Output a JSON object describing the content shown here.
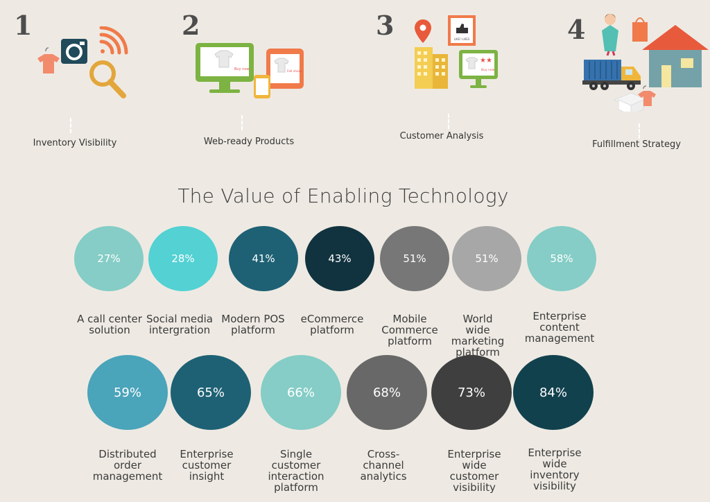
{
  "steps": [
    {
      "number": "1",
      "label": "Inventory Visibility"
    },
    {
      "number": "2",
      "label": "Web-ready Products"
    },
    {
      "number": "3",
      "label": "Customer Analysis"
    },
    {
      "number": "4",
      "label": "Fulfillment Strategy"
    }
  ],
  "title": "The Value of Enabling Technology",
  "circles": [
    {
      "value": "27%",
      "label": "A call center solution",
      "color": "#85cdc6"
    },
    {
      "value": "28%",
      "label": "Social media intergration",
      "color": "#53d1d3"
    },
    {
      "value": "41%",
      "label": "Modern POS platform",
      "color": "#1e6174"
    },
    {
      "value": "43%",
      "label": "eCommerce platform",
      "color": "#11333f"
    },
    {
      "value": "51%",
      "label": "Mobile Commerce platform",
      "color": "#777777"
    },
    {
      "value": "51%",
      "label": "World wide marketing platform",
      "color": "#a7a7a7"
    },
    {
      "value": "58%",
      "label": "Enterprise content management",
      "color": "#85cdc6"
    },
    {
      "value": "59%",
      "label": "Distributed order management",
      "color": "#4aa4ba"
    },
    {
      "value": "65%",
      "label": "Enterprise customer insight",
      "color": "#1e6174"
    },
    {
      "value": "66%",
      "label": "Single customer interaction platform",
      "color": "#85cdc6"
    },
    {
      "value": "68%",
      "label": "Cross-channel analytics",
      "color": "#686868"
    },
    {
      "value": "73%",
      "label": "Enterprise wide customer visibility",
      "color": "#3f3f3f"
    },
    {
      "value": "84%",
      "label": "Enterprise wide inventory visibility",
      "color": "#12414e"
    }
  ],
  "icon_text": {
    "sign_small": "Buy now",
    "sign_tablet": "Fall shoes",
    "sign_monitor": "Buy now",
    "badge": "LIKE! LIKES"
  }
}
